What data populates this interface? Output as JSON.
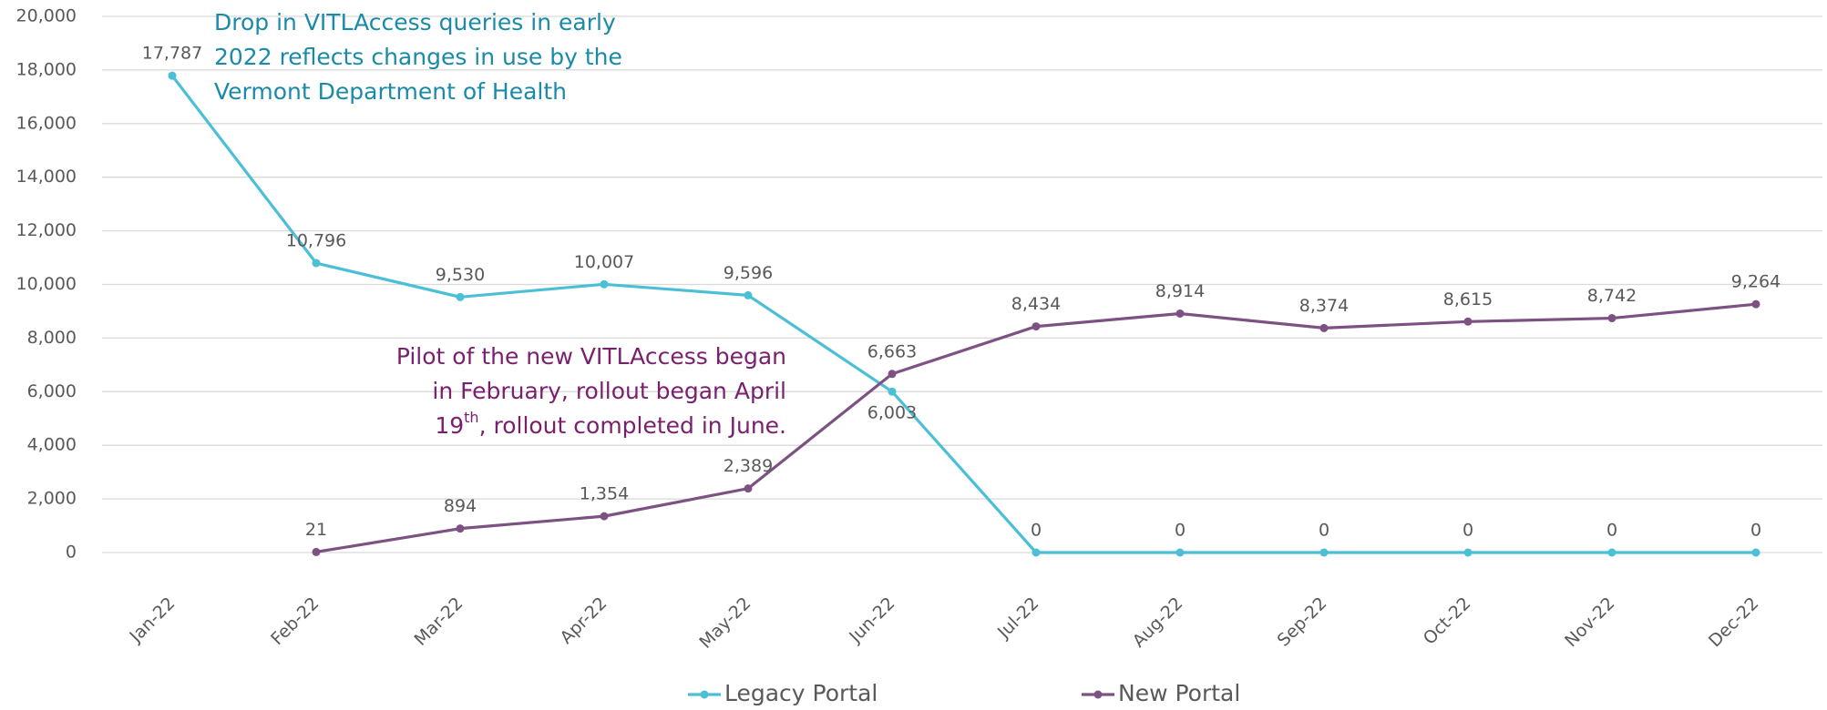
{
  "chart_data": {
    "type": "line",
    "categories": [
      "Jan-22",
      "Feb-22",
      "Mar-22",
      "Apr-22",
      "May-22",
      "Jun-22",
      "Jul-22",
      "Aug-22",
      "Sep-22",
      "Oct-22",
      "Nov-22",
      "Dec-22"
    ],
    "series": [
      {
        "name": "Legacy Portal",
        "color": "#4bbfd6",
        "values": [
          17787,
          10796,
          9530,
          10007,
          9596,
          6003,
          0,
          0,
          0,
          0,
          0,
          0
        ],
        "value_labels": [
          "17,787",
          "10,796",
          "9,530",
          "10,007",
          "9,596",
          "6,003",
          "0",
          "0",
          "0",
          "0",
          "0",
          "0"
        ]
      },
      {
        "name": "New Portal",
        "color": "#7d5283",
        "values": [
          null,
          21,
          894,
          1354,
          2389,
          6663,
          8434,
          8914,
          8374,
          8615,
          8742,
          9264
        ],
        "value_labels": [
          null,
          "21",
          "894",
          "1,354",
          "2,389",
          "6,663",
          "8,434",
          "8,914",
          "8,374",
          "8,615",
          "8,742",
          "9,264"
        ]
      }
    ],
    "ylim": [
      0,
      20000
    ],
    "yticks": [
      {
        "value": 0,
        "label": "0"
      },
      {
        "value": 2000,
        "label": "2,000"
      },
      {
        "value": 4000,
        "label": "4,000"
      },
      {
        "value": 6000,
        "label": "6,000"
      },
      {
        "value": 8000,
        "label": "8,000"
      },
      {
        "value": 10000,
        "label": "10,000"
      },
      {
        "value": 12000,
        "label": "12,000"
      },
      {
        "value": 14000,
        "label": "14,000"
      },
      {
        "value": 16000,
        "label": "16,000"
      },
      {
        "value": 18000,
        "label": "18,000"
      },
      {
        "value": 20000,
        "label": "20,000"
      }
    ],
    "grid": true,
    "legend": "bottom",
    "annotations": [
      {
        "color": "#1a8aa8",
        "lines": [
          [
            {
              "text": "Drop in VITLAccess queries in early"
            }
          ],
          [
            {
              "text": "2022 reflects changes in use by the"
            }
          ],
          [
            {
              "text": "Vermont Department of Health"
            }
          ]
        ]
      },
      {
        "color": "#7a1f6e",
        "lines": [
          [
            {
              "text": "Pilot of the new VITLAccess began"
            }
          ],
          [
            {
              "text": "in February, rollout began April"
            }
          ],
          [
            {
              "text": "19"
            },
            {
              "text": "th",
              "superscript": true
            },
            {
              "text": ", rollout completed in June."
            }
          ]
        ]
      }
    ]
  }
}
